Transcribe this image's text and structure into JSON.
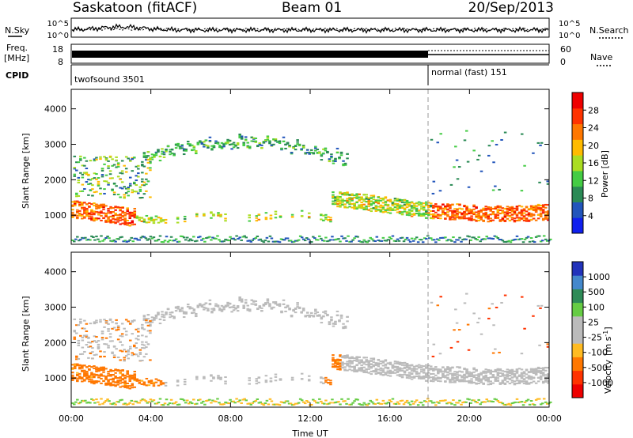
{
  "header": {
    "title": "Saskatoon (fitACF)",
    "beam": "Beam 01",
    "date": "20/Sep/2013"
  },
  "top_panels": {
    "nsky_label": "N.Sky",
    "nsearch_label": "N.Search",
    "noise_tick_top": "10^5",
    "noise_tick_bottom": "10^0",
    "freq_label_1": "Freq.",
    "freq_label_2": "[MHz]",
    "freq_tick_top": "18",
    "freq_tick_bottom": "8",
    "nave_label": "Nave",
    "nave_tick_top": "60",
    "nave_tick_bottom": "0",
    "cpid_label": "CPID",
    "cpid_1": "twofsound 3501",
    "cpid_2": "normal (fast) 151"
  },
  "colors": {
    "power_scale": [
      "#1020ee",
      "#2255bb",
      "#2a8a55",
      "#44cc44",
      "#aadd22",
      "#ffbb00",
      "#ff7700",
      "#ff3300",
      "#ee0000"
    ],
    "velocity_scale": [
      "#2233bb",
      "#4488cc",
      "#2e8b57",
      "#66cc44",
      "#bbbbbb",
      "#bbbbbb",
      "#ffbb22",
      "#ff7700",
      "#ff3300",
      "#ee0000"
    ],
    "ground_scatter": "#bbbbbb"
  },
  "chart_data": [
    {
      "type": "heatmap",
      "name": "power",
      "xlabel": "Time UT",
      "ylabel": "Slant Range [km]",
      "colorbar_label": "Power [dB]",
      "colorbar_ticks": [
        "4",
        "8",
        "12",
        "16",
        "20",
        "24",
        "28"
      ],
      "y_ticks": [
        "1000",
        "2000",
        "3000",
        "4000"
      ],
      "x_ticks": [
        "00:00",
        "04:00",
        "08:00",
        "12:00",
        "16:00",
        "20:00",
        "00:00"
      ],
      "xlim_hours": [
        0,
        24
      ],
      "ylim_km": [
        180,
        4550
      ],
      "mode_change_hour": 18
    },
    {
      "type": "heatmap",
      "name": "velocity",
      "xlabel": "Time UT",
      "ylabel": "Slant Range [km]",
      "colorbar_label": "Velocity",
      "colorbar_unit": "[m s",
      "colorbar_unit_sup": "-1",
      "colorbar_unit_end": "]",
      "colorbar_ticks": [
        "1000",
        "500",
        "100",
        "25",
        "-25",
        "-100",
        "-500",
        "-1000"
      ],
      "y_ticks": [
        "1000",
        "2000",
        "3000",
        "4000"
      ],
      "x_ticks": [
        "00:00",
        "04:00",
        "08:00",
        "12:00",
        "16:00",
        "20:00",
        "00:00"
      ],
      "xlim_hours": [
        0,
        24
      ],
      "ylim_km": [
        180,
        4550
      ],
      "mode_change_hour": 18
    }
  ],
  "axis": {
    "x_title": "Time UT"
  }
}
